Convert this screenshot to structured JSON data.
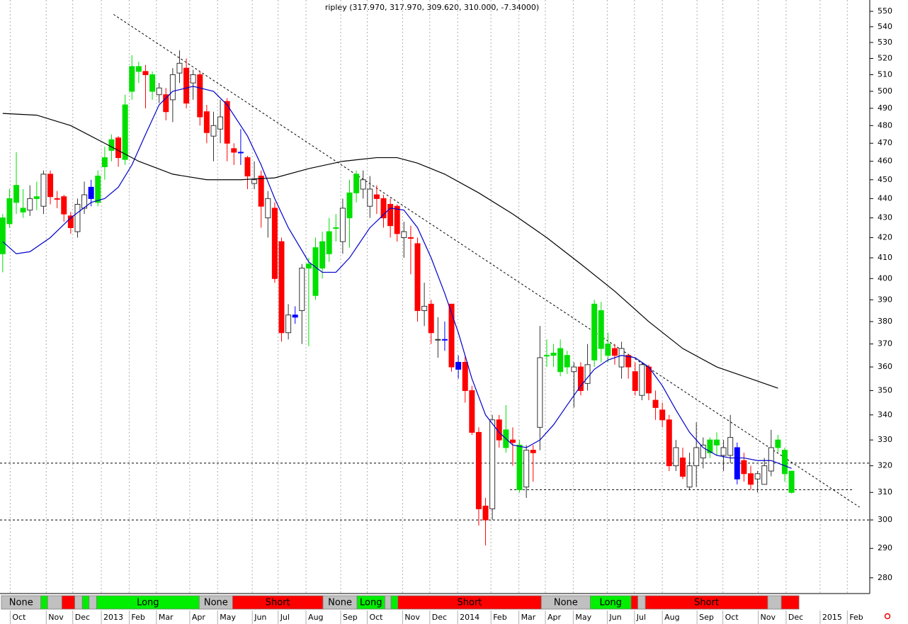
{
  "chart_data": {
    "type": "candlestick",
    "title": "ripley (317.970, 317.970, 309.620, 310.000, -7.34000)",
    "log_scale": true,
    "ylim": [
      274.8,
      557.5
    ],
    "yticks": [
      280,
      290,
      300,
      310,
      320,
      330,
      340,
      350,
      360,
      370,
      380,
      390,
      400,
      410,
      420,
      430,
      440,
      450,
      460,
      470,
      480,
      490,
      500,
      510,
      520,
      530,
      540,
      550
    ],
    "xlim": [
      -0.4,
      127.5
    ],
    "xticks": [
      {
        "value": 1.1,
        "label": "Oct"
      },
      {
        "value": 6.4,
        "label": "Nov"
      },
      {
        "value": 10.3,
        "label": "Dec"
      },
      {
        "value": 14.5,
        "label": "2013"
      },
      {
        "value": 18.6,
        "label": "Feb"
      },
      {
        "value": 22.6,
        "label": "Mar"
      },
      {
        "value": 27.5,
        "label": "Apr"
      },
      {
        "value": 31.6,
        "label": "May"
      },
      {
        "value": 36.7,
        "label": "Jun"
      },
      {
        "value": 40.5,
        "label": "Jul"
      },
      {
        "value": 44.6,
        "label": "Aug"
      },
      {
        "value": 49.7,
        "label": "Sep"
      },
      {
        "value": 53.6,
        "label": "Oct"
      },
      {
        "value": 58.8,
        "label": "Nov"
      },
      {
        "value": 62.8,
        "label": "Dec"
      },
      {
        "value": 66.9,
        "label": "2014"
      },
      {
        "value": 71.8,
        "label": "Feb"
      },
      {
        "value": 75.9,
        "label": "Mar"
      },
      {
        "value": 79.8,
        "label": "Apr"
      },
      {
        "value": 83.9,
        "label": "May"
      },
      {
        "value": 88.9,
        "label": "Jun"
      },
      {
        "value": 92.9,
        "label": "Jul"
      },
      {
        "value": 97.0,
        "label": "Aug"
      },
      {
        "value": 102.1,
        "label": "Sep"
      },
      {
        "value": 105.9,
        "label": "Oct"
      },
      {
        "value": 111.1,
        "label": "Nov"
      },
      {
        "value": 115.2,
        "label": "Dec"
      },
      {
        "value": 120.2,
        "label": "2015"
      },
      {
        "value": 124.2,
        "label": "Feb"
      }
    ],
    "x": [
      0,
      1,
      2,
      3,
      4,
      5,
      6,
      7,
      8,
      9,
      10,
      11,
      12,
      13,
      14,
      15,
      16,
      17,
      18,
      19,
      20,
      21,
      22,
      23,
      24,
      25,
      26,
      27,
      28,
      29,
      30,
      31,
      32,
      33,
      34,
      35,
      36,
      37,
      38,
      39,
      40,
      41,
      42,
      43,
      44,
      45,
      46,
      47,
      48,
      49,
      50,
      51,
      52,
      53,
      54,
      55,
      56,
      57,
      58,
      59,
      60,
      61,
      62,
      63,
      64,
      65,
      66,
      67,
      68,
      69,
      70,
      71,
      72,
      73,
      74,
      75,
      76,
      77,
      78,
      79,
      80,
      81,
      82,
      83,
      84,
      85,
      86,
      87,
      88,
      89,
      90,
      91,
      92,
      93,
      94,
      95,
      96,
      97,
      98,
      99,
      100,
      101,
      102,
      103,
      104,
      105,
      106,
      107,
      108,
      109,
      110,
      111,
      112,
      113,
      114,
      115,
      116
    ],
    "open": [
      412,
      427,
      438,
      435,
      434,
      441,
      436,
      453,
      440,
      441,
      431,
      423,
      435,
      440,
      438,
      457,
      466,
      473,
      461,
      500,
      515,
      512,
      510,
      498,
      498,
      495,
      511,
      514,
      505,
      510,
      488,
      474,
      478,
      494,
      467,
      465,
      462,
      448,
      452,
      430,
      435,
      418,
      375,
      383,
      385,
      407,
      392,
      405,
      412,
      425,
      418,
      430,
      443,
      450,
      445,
      442,
      440,
      437,
      436,
      423,
      420,
      417,
      387,
      388,
      372,
      372,
      388,
      362,
      362,
      350,
      333,
      305,
      304,
      338,
      327,
      330,
      328,
      312,
      325,
      335,
      365,
      366,
      368,
      365,
      360,
      360,
      353,
      363,
      385,
      370,
      368,
      360,
      365,
      358,
      348,
      360,
      346,
      342,
      338,
      320,
      323,
      312,
      320,
      323,
      325,
      328,
      324,
      324,
      327,
      322,
      317,
      315,
      313,
      318,
      327,
      326,
      317.97
    ],
    "high": [
      432,
      445,
      465,
      445,
      447,
      449,
      455,
      455,
      444,
      442,
      433,
      440,
      449,
      450,
      455,
      468,
      475,
      474,
      498,
      522,
      518,
      516,
      512,
      505,
      502,
      514,
      525,
      520,
      513,
      512,
      492,
      488,
      495,
      496,
      470,
      478,
      463,
      460,
      455,
      444,
      438,
      420,
      388,
      387,
      407,
      410,
      420,
      423,
      430,
      432,
      440,
      450,
      455,
      455,
      452,
      447,
      442,
      440,
      437,
      428,
      426,
      420,
      398,
      390,
      382,
      380,
      388,
      365,
      365,
      352,
      335,
      308,
      340,
      340,
      344,
      335,
      330,
      328,
      328,
      378,
      372,
      370,
      372,
      367,
      362,
      362,
      370,
      390,
      389,
      375,
      370,
      371,
      365,
      362,
      362,
      361,
      350,
      345,
      340,
      330,
      327,
      325,
      337,
      331,
      331,
      333,
      330,
      340,
      329,
      325,
      320,
      318,
      323,
      334,
      332,
      327,
      317.97
    ],
    "low": [
      403,
      425,
      432,
      430,
      431,
      434,
      432,
      437,
      435,
      428,
      422,
      420,
      432,
      436,
      436,
      450,
      460,
      457,
      458,
      495,
      505,
      490,
      495,
      493,
      483,
      482,
      505,
      490,
      495,
      480,
      470,
      460,
      470,
      460,
      458,
      458,
      445,
      445,
      425,
      420,
      398,
      371,
      372,
      379,
      370,
      369,
      390,
      400,
      408,
      418,
      412,
      415,
      438,
      440,
      430,
      432,
      425,
      420,
      418,
      410,
      402,
      380,
      378,
      370,
      364,
      367,
      358,
      355,
      345,
      332,
      298,
      291,
      300,
      327,
      325,
      320,
      310,
      308,
      314,
      326,
      360,
      360,
      356,
      357,
      343,
      348,
      350,
      360,
      362,
      362,
      361,
      355,
      355,
      348,
      346,
      346,
      338,
      335,
      318,
      318,
      315,
      311,
      312,
      319,
      323,
      324,
      318,
      321,
      313,
      314,
      311,
      310,
      313,
      316,
      325,
      314,
      309.62
    ],
    "close": [
      430,
      440,
      447,
      433,
      440,
      440,
      453,
      441,
      440,
      432,
      425,
      437,
      442,
      446,
      452,
      462,
      472,
      462,
      492,
      515,
      512,
      510,
      500,
      502,
      488,
      510,
      517,
      493,
      510,
      485,
      476,
      480,
      485,
      470,
      465,
      465,
      452,
      450,
      436,
      440,
      400,
      375,
      383,
      382,
      405,
      405,
      415,
      418,
      423,
      425,
      435,
      443,
      453,
      445,
      436,
      440,
      430,
      426,
      422,
      420,
      420,
      385,
      385,
      375,
      372,
      372,
      360,
      359,
      350,
      333,
      304,
      300,
      338,
      330,
      334,
      329,
      311,
      326,
      326,
      364,
      365,
      365,
      358,
      360,
      358,
      350,
      361,
      388,
      368,
      365,
      365,
      368,
      360,
      350,
      361,
      349,
      343,
      338,
      320,
      327,
      316,
      320,
      327,
      328,
      330,
      330,
      327,
      331,
      315,
      317,
      313,
      317,
      320,
      327,
      330,
      317,
      310
    ],
    "colors": [
      "#00e000",
      "#00e000",
      "#00e000",
      "#00e000",
      "#ffffff",
      "#00e000",
      "#ffffff",
      "#ff0000",
      "#ff0000",
      "#ff0000",
      "#ff0000",
      "#ffffff",
      "#ffffff",
      "#0000ff",
      "#00e000",
      "#00e000",
      "#00e000",
      "#ff0000",
      "#00e000",
      "#00e000",
      "#00e000",
      "#ff0000",
      "#00e000",
      "#ffffff",
      "#ff0000",
      "#ffffff",
      "#ffffff",
      "#ff0000",
      "#ffffff",
      "#ff0000",
      "#ff0000",
      "#ffffff",
      "#ffffff",
      "#ff0000",
      "#ff0000",
      "#0000ff",
      "#ff0000",
      "#ffffff",
      "#ff0000",
      "#ffffff",
      "#ff0000",
      "#ff0000",
      "#ffffff",
      "#0000ff",
      "#ffffff",
      "#00e000",
      "#00e000",
      "#00e000",
      "#00e000",
      "#00e000",
      "#ffffff",
      "#00e000",
      "#00e000",
      "#ffffff",
      "#ffffff",
      "#ff0000",
      "#ff0000",
      "#ff0000",
      "#ff0000",
      "#ffffff",
      "#ff0000",
      "#ff0000",
      "#ffffff",
      "#ff0000",
      "#ffffff",
      "#0000ff",
      "#ff0000",
      "#0000ff",
      "#ff0000",
      "#ff0000",
      "#ff0000",
      "#ff0000",
      "#ffffff",
      "#ff0000",
      "#00e000",
      "#ff0000",
      "#00e000",
      "#ffffff",
      "#ff0000",
      "#ffffff",
      "#00e000",
      "#00e000",
      "#00e000",
      "#00e000",
      "#ffffff",
      "#ff0000",
      "#ffffff",
      "#00e000",
      "#00e000",
      "#00e000",
      "#ff0000",
      "#ffffff",
      "#ff0000",
      "#ff0000",
      "#ffffff",
      "#ff0000",
      "#ff0000",
      "#ff0000",
      "#ff0000",
      "#ffffff",
      "#ff0000",
      "#ffffff",
      "#ffffff",
      "#ffffff",
      "#00e000",
      "#00e000",
      "#ffffff",
      "#ffffff",
      "#0000ff",
      "#ff0000",
      "#ff0000",
      "#ffffff",
      "#ffffff",
      "#ffffff",
      "#00e000",
      "#00e000",
      "#00e000"
    ],
    "series": [
      {
        "color": "#0000cc",
        "x": [
          0,
          2,
          4,
          7,
          10,
          13,
          15,
          17,
          19,
          21,
          23,
          25,
          28,
          31,
          33,
          36,
          38,
          40,
          42,
          45,
          47,
          49,
          51,
          54,
          57,
          59,
          61,
          63,
          65,
          67,
          69,
          71,
          73,
          75,
          77,
          79,
          81,
          83,
          85,
          87,
          89,
          91,
          93,
          95,
          97,
          99,
          101,
          103,
          105,
          107,
          109,
          111,
          113,
          115,
          116
        ],
        "values": [
          418,
          412,
          413,
          420,
          430,
          438,
          440,
          446,
          458,
          475,
          492,
          500,
          503,
          500,
          492,
          474,
          458,
          440,
          425,
          408,
          403,
          403,
          410,
          425,
          435,
          434,
          425,
          410,
          393,
          375,
          355,
          340,
          333,
          328,
          327,
          330,
          336,
          344,
          352,
          359,
          363,
          365,
          364,
          360,
          352,
          342,
          333,
          327,
          324,
          323,
          323,
          322,
          322,
          320,
          319
        ]
      },
      {
        "color": "#000000",
        "x": [
          0,
          5,
          10,
          15,
          20,
          25,
          30,
          35,
          40,
          45,
          50,
          55,
          58,
          61,
          65,
          70,
          75,
          80,
          85,
          90,
          95,
          100,
          105,
          110,
          114
        ],
        "values": [
          487,
          486,
          480,
          470,
          460,
          453,
          450,
          450,
          451,
          456,
          460,
          462,
          462,
          459,
          453,
          443,
          432,
          420,
          407,
          394,
          380,
          368,
          360,
          355,
          351
        ]
      }
    ],
    "reference_lines": [
      {
        "x": [
          16.3,
          126
        ],
        "y": [
          548,
          304.6
        ]
      },
      {
        "y": 321
      },
      {
        "y": 311,
        "x": [
          74.6,
          124.9
        ]
      },
      {
        "y": 300
      }
    ],
    "signals": [
      {
        "label": "None",
        "color": "#c0c0c0",
        "start": -0.2,
        "end": 5.6
      },
      {
        "color": "#00ee00",
        "start": 5.6,
        "end": 6.6
      },
      {
        "color": "#c0c0c0",
        "start": 6.6,
        "end": 8.7
      },
      {
        "color": "#ff0000",
        "start": 8.7,
        "end": 10.6
      },
      {
        "color": "#c0c0c0",
        "start": 10.6,
        "end": 11.7
      },
      {
        "color": "#00ee00",
        "start": 11.7,
        "end": 12.7
      },
      {
        "color": "#c0c0c0",
        "start": 12.7,
        "end": 13.8
      },
      {
        "label": "Long",
        "color": "#00ee00",
        "start": 13.8,
        "end": 28.9
      },
      {
        "label": "None",
        "color": "#c0c0c0",
        "start": 28.9,
        "end": 33.8
      },
      {
        "label": "Short",
        "color": "#ff0000",
        "start": 33.8,
        "end": 47.1
      },
      {
        "label": "None",
        "color": "#c0c0c0",
        "start": 47.1,
        "end": 52.1
      },
      {
        "label": "Long",
        "color": "#00ee00",
        "start": 52.1,
        "end": 56.2
      },
      {
        "color": "#c0c0c0",
        "start": 56.2,
        "end": 57.1
      },
      {
        "color": "#00ee00",
        "start": 57.1,
        "end": 58.1
      },
      {
        "label": "Short",
        "color": "#ff0000",
        "start": 58.1,
        "end": 79.2
      },
      {
        "label": "None",
        "color": "#c0c0c0",
        "start": 79.2,
        "end": 86.4
      },
      {
        "label": "Long",
        "color": "#00ee00",
        "start": 86.4,
        "end": 92.4
      },
      {
        "color": "#ff0000",
        "start": 92.4,
        "end": 93.4
      },
      {
        "color": "#c0c0c0",
        "start": 93.4,
        "end": 94.5
      },
      {
        "label": "Short",
        "color": "#ff0000",
        "start": 94.5,
        "end": 112.5
      },
      {
        "color": "#c0c0c0",
        "start": 112.5,
        "end": 114.5
      },
      {
        "color": "#ff0000",
        "start": 114.5,
        "end": 117.1
      }
    ]
  }
}
